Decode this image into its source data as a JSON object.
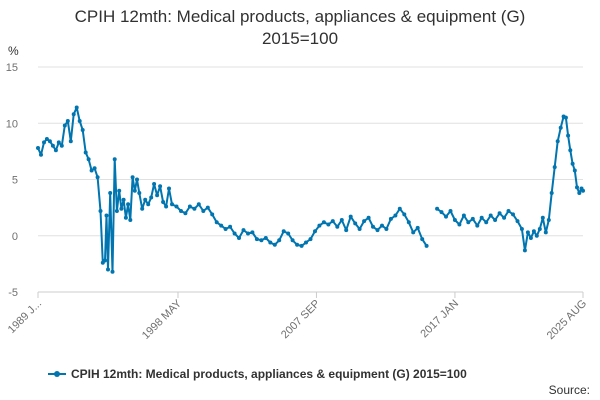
{
  "title_line1": "CPIH 12mth: Medical products, appliances & equipment (G)",
  "title_line2": "2015=100",
  "source_label": "Source:",
  "chart_data": {
    "type": "line",
    "ylabel": "%",
    "ylim": [
      -5,
      15
    ],
    "yticks": [
      15,
      10,
      5,
      0,
      -5
    ],
    "xlim": [
      1989.0,
      2025.6
    ],
    "xtick_labels": [
      "1989 J...",
      "1998 MAY",
      "2007 SEP",
      "2017 JAN",
      "2025 AUG"
    ],
    "xtick_values": [
      1989.0,
      1998.4,
      2007.7,
      2017.0,
      2025.6
    ],
    "grid": true,
    "legend_position": "bottom",
    "line_color": "#0075b0",
    "series": [
      {
        "name": "CPIH 12mth: Medical products, appliances & equipment (G) 2015=100",
        "points": [
          [
            1989.0,
            7.8
          ],
          [
            1989.2,
            7.2
          ],
          [
            1989.4,
            8.3
          ],
          [
            1989.6,
            8.6
          ],
          [
            1989.8,
            8.4
          ],
          [
            1990.0,
            8.0
          ],
          [
            1990.2,
            7.6
          ],
          [
            1990.4,
            8.3
          ],
          [
            1990.6,
            8.0
          ],
          [
            1990.8,
            9.8
          ],
          [
            1991.0,
            10.2
          ],
          [
            1991.2,
            8.4
          ],
          [
            1991.4,
            10.8
          ],
          [
            1991.6,
            11.4
          ],
          [
            1991.8,
            10.2
          ],
          [
            1992.0,
            9.4
          ],
          [
            1992.2,
            7.4
          ],
          [
            1992.4,
            6.8
          ],
          [
            1992.6,
            5.8
          ],
          [
            1992.8,
            6.0
          ],
          [
            1993.0,
            5.2
          ],
          [
            1993.2,
            2.2
          ],
          [
            1993.35,
            -2.4
          ],
          [
            1993.5,
            -2.2
          ],
          [
            1993.6,
            1.8
          ],
          [
            1993.7,
            -3.0
          ],
          [
            1993.85,
            3.8
          ],
          [
            1994.0,
            -3.2
          ],
          [
            1994.15,
            6.8
          ],
          [
            1994.3,
            2.2
          ],
          [
            1994.45,
            4.0
          ],
          [
            1994.6,
            2.4
          ],
          [
            1994.75,
            3.2
          ],
          [
            1994.9,
            1.6
          ],
          [
            1995.05,
            2.8
          ],
          [
            1995.2,
            1.4
          ],
          [
            1995.35,
            5.2
          ],
          [
            1995.5,
            4.0
          ],
          [
            1995.65,
            5.0
          ],
          [
            1995.8,
            3.8
          ],
          [
            1996.0,
            2.4
          ],
          [
            1996.2,
            3.2
          ],
          [
            1996.4,
            2.8
          ],
          [
            1996.6,
            3.4
          ],
          [
            1996.8,
            4.6
          ],
          [
            1997.0,
            3.6
          ],
          [
            1997.2,
            4.4
          ],
          [
            1997.4,
            3.0
          ],
          [
            1997.6,
            2.6
          ],
          [
            1997.8,
            4.2
          ],
          [
            1998.0,
            2.8
          ],
          [
            1998.3,
            2.6
          ],
          [
            1998.6,
            2.2
          ],
          [
            1998.9,
            2.0
          ],
          [
            1999.2,
            2.6
          ],
          [
            1999.5,
            2.4
          ],
          [
            1999.8,
            2.8
          ],
          [
            2000.1,
            2.2
          ],
          [
            2000.4,
            2.5
          ],
          [
            2000.7,
            1.9
          ],
          [
            2001.0,
            1.2
          ],
          [
            2001.3,
            0.9
          ],
          [
            2001.6,
            0.6
          ],
          [
            2001.9,
            0.8
          ],
          [
            2002.2,
            0.2
          ],
          [
            2002.5,
            -0.2
          ],
          [
            2002.8,
            0.5
          ],
          [
            2003.1,
            0.2
          ],
          [
            2003.4,
            0.3
          ],
          [
            2003.7,
            -0.3
          ],
          [
            2004.0,
            -0.4
          ],
          [
            2004.3,
            -0.2
          ],
          [
            2004.6,
            -0.6
          ],
          [
            2004.9,
            -0.8
          ],
          [
            2005.2,
            -0.4
          ],
          [
            2005.5,
            0.4
          ],
          [
            2005.8,
            0.2
          ],
          [
            2006.1,
            -0.4
          ],
          [
            2006.4,
            -0.8
          ],
          [
            2006.7,
            -0.9
          ],
          [
            2007.0,
            -0.6
          ],
          [
            2007.3,
            -0.3
          ],
          [
            2007.6,
            0.4
          ],
          [
            2007.9,
            0.9
          ],
          [
            2008.2,
            1.2
          ],
          [
            2008.5,
            1.0
          ],
          [
            2008.8,
            1.3
          ],
          [
            2009.1,
            0.8
          ],
          [
            2009.4,
            1.4
          ],
          [
            2009.7,
            0.5
          ],
          [
            2010.0,
            1.7
          ],
          [
            2010.3,
            1.1
          ],
          [
            2010.6,
            0.6
          ],
          [
            2010.9,
            1.3
          ],
          [
            2011.2,
            1.6
          ],
          [
            2011.5,
            0.8
          ],
          [
            2011.8,
            0.5
          ],
          [
            2012.1,
            0.9
          ],
          [
            2012.4,
            0.6
          ],
          [
            2012.7,
            1.5
          ],
          [
            2013.0,
            1.8
          ],
          [
            2013.3,
            2.4
          ],
          [
            2013.6,
            1.9
          ],
          [
            2013.9,
            1.2
          ],
          [
            2014.2,
            0.3
          ],
          [
            2014.5,
            0.7
          ],
          [
            2014.8,
            -0.3
          ],
          [
            2015.1,
            -0.9
          ],
          [
            2015.8,
            2.4
          ],
          [
            2016.1,
            2.1
          ],
          [
            2016.4,
            1.7
          ],
          [
            2016.7,
            2.2
          ],
          [
            2017.0,
            1.4
          ],
          [
            2017.3,
            1.0
          ],
          [
            2017.6,
            1.8
          ],
          [
            2017.9,
            1.2
          ],
          [
            2018.2,
            1.5
          ],
          [
            2018.5,
            0.9
          ],
          [
            2018.8,
            1.6
          ],
          [
            2019.1,
            1.2
          ],
          [
            2019.4,
            1.8
          ],
          [
            2019.7,
            1.4
          ],
          [
            2020.0,
            2.0
          ],
          [
            2020.3,
            1.6
          ],
          [
            2020.6,
            2.2
          ],
          [
            2020.9,
            1.9
          ],
          [
            2021.2,
            1.3
          ],
          [
            2021.5,
            0.6
          ],
          [
            2021.7,
            -1.3
          ],
          [
            2021.9,
            0.3
          ],
          [
            2022.1,
            -0.2
          ],
          [
            2022.3,
            0.4
          ],
          [
            2022.5,
            0.0
          ],
          [
            2022.7,
            0.6
          ],
          [
            2022.9,
            1.6
          ],
          [
            2023.1,
            0.3
          ],
          [
            2023.3,
            1.4
          ],
          [
            2023.5,
            3.8
          ],
          [
            2023.7,
            6.1
          ],
          [
            2023.9,
            8.4
          ],
          [
            2024.1,
            9.6
          ],
          [
            2024.3,
            10.6
          ],
          [
            2024.45,
            10.5
          ],
          [
            2024.6,
            8.9
          ],
          [
            2024.75,
            7.6
          ],
          [
            2024.9,
            6.4
          ],
          [
            2025.05,
            5.8
          ],
          [
            2025.2,
            4.3
          ],
          [
            2025.35,
            3.8
          ],
          [
            2025.5,
            4.2
          ],
          [
            2025.6,
            4.0
          ]
        ]
      }
    ]
  }
}
